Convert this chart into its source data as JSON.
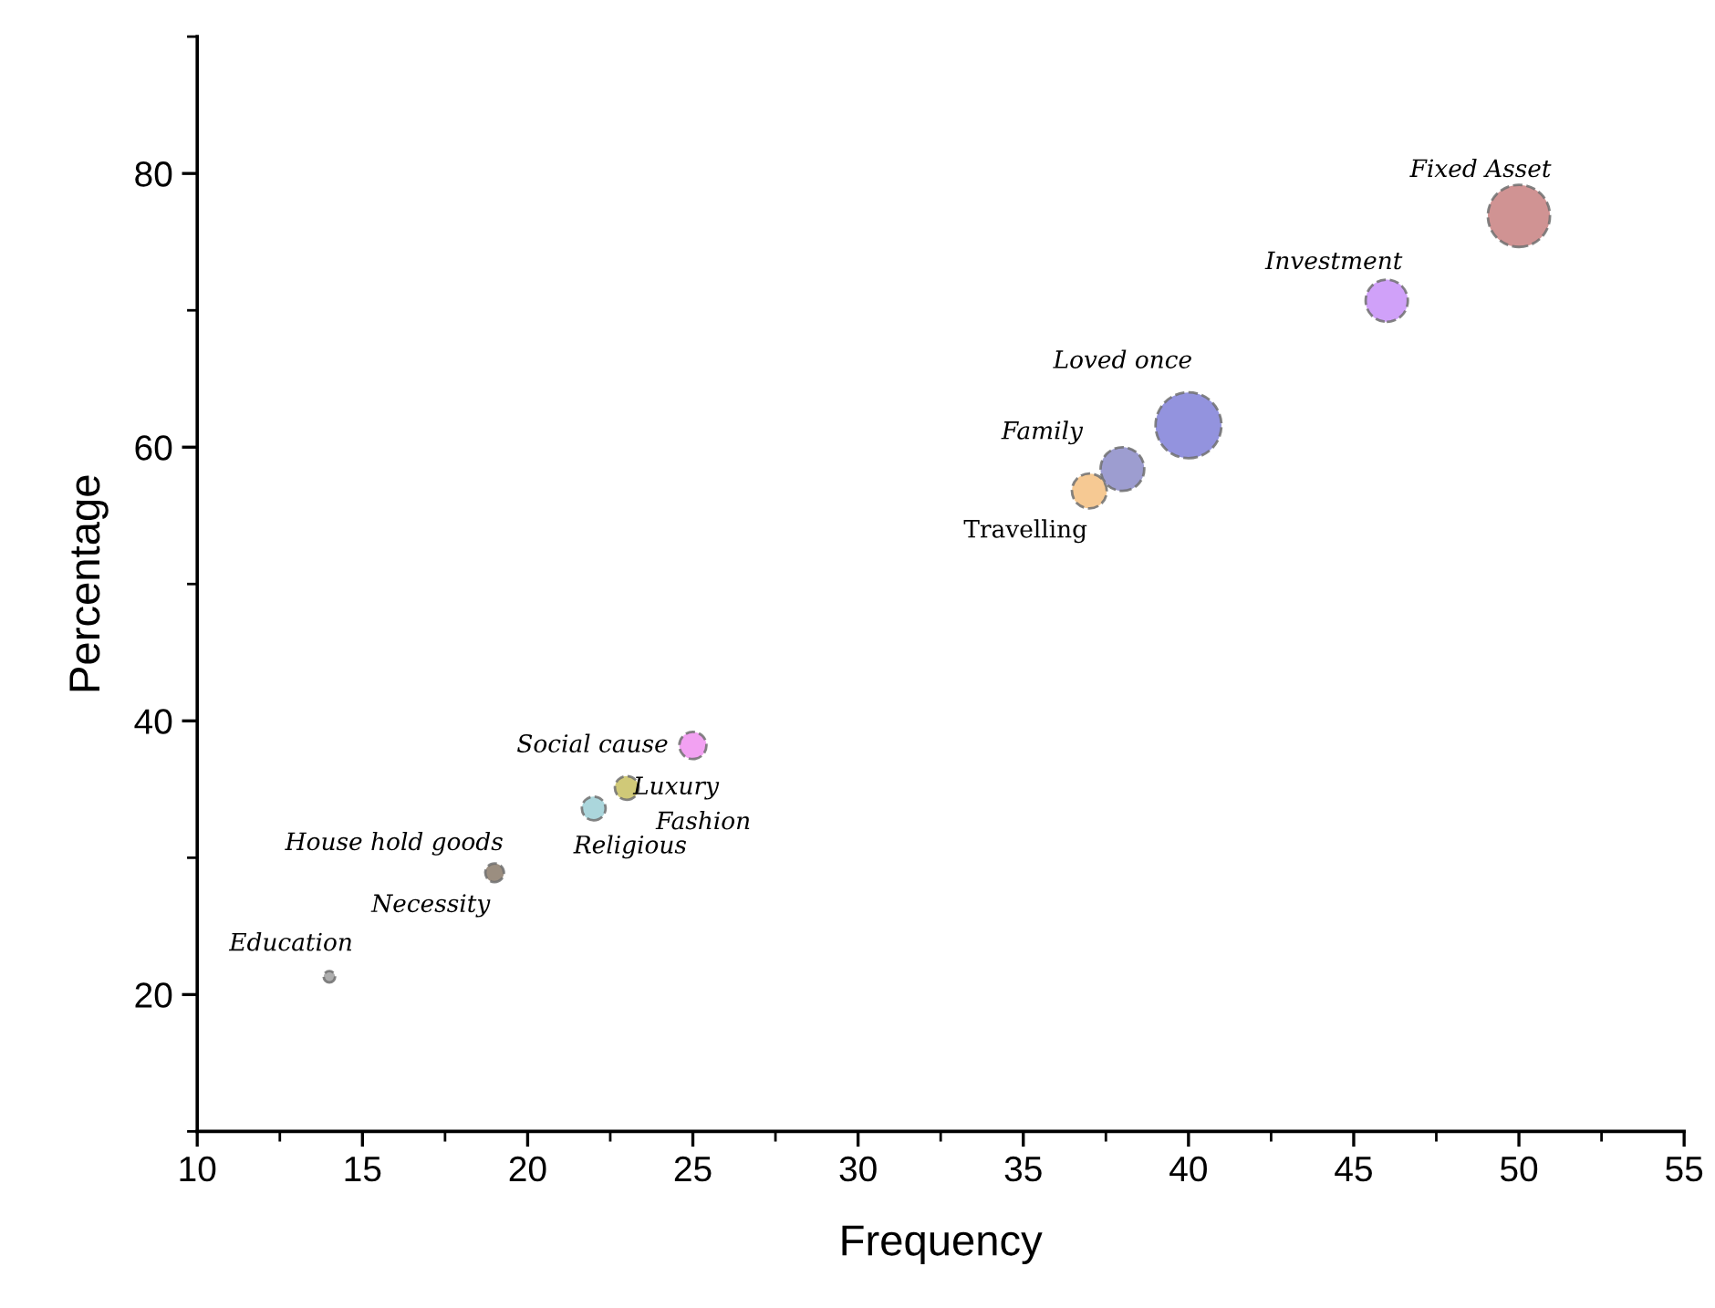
{
  "chart_data": {
    "type": "bubble",
    "xlabel": "Frequency",
    "ylabel": "Percentage",
    "x": [
      14,
      19,
      22,
      23,
      25,
      37,
      38,
      40,
      46,
      50
    ],
    "series": [
      {
        "values": [
          21.3,
          28.9,
          33.6,
          35.1,
          38.2,
          56.8,
          58.4,
          61.6,
          70.7,
          76.9
        ],
        "sizes": [
          0.03,
          0.08,
          0.13,
          0.13,
          0.17,
          0.28,
          0.44,
          1,
          0.41,
          0.89
        ],
        "colors": [
          "#a0a0a0",
          "#8a7a6a",
          "#9ccfd6",
          "#c8c060",
          "#f090f0",
          "#f5c080",
          "#8c8cc8",
          "#8080d8",
          "#c890f8",
          "#c88080"
        ]
      }
    ],
    "annotations": [
      {
        "text": "Education",
        "x": 14,
        "y": 21.3
      },
      {
        "text": "House hold goods",
        "x": 19,
        "y": 28.9
      },
      {
        "text": "Necessity",
        "x": 19,
        "y": 28.9
      },
      {
        "text": "Religious",
        "x": 22,
        "y": 33.6
      },
      {
        "text": "Luxury",
        "x": 23,
        "y": 35.1
      },
      {
        "text": "Fashion",
        "x": 23,
        "y": 35.1
      },
      {
        "text": "Social cause",
        "x": 25,
        "y": 38.2
      },
      {
        "text": "Travelling",
        "x": 37,
        "y": 56.8
      },
      {
        "text": "Family",
        "x": 38,
        "y": 58.4
      },
      {
        "text": "Loved once",
        "x": 40,
        "y": 61.6
      },
      {
        "text": "Investment",
        "x": 46,
        "y": 70.7
      },
      {
        "text": "Fixed Asset",
        "x": 50,
        "y": 76.9
      }
    ],
    "xlim": [
      10,
      55
    ],
    "xticks": [
      10,
      15,
      20,
      25,
      30,
      35,
      40,
      45,
      50,
      55
    ],
    "ylim": [
      10,
      90
    ],
    "yticks": [
      20,
      40,
      60,
      80
    ],
    "grid": false,
    "legend": false
  }
}
